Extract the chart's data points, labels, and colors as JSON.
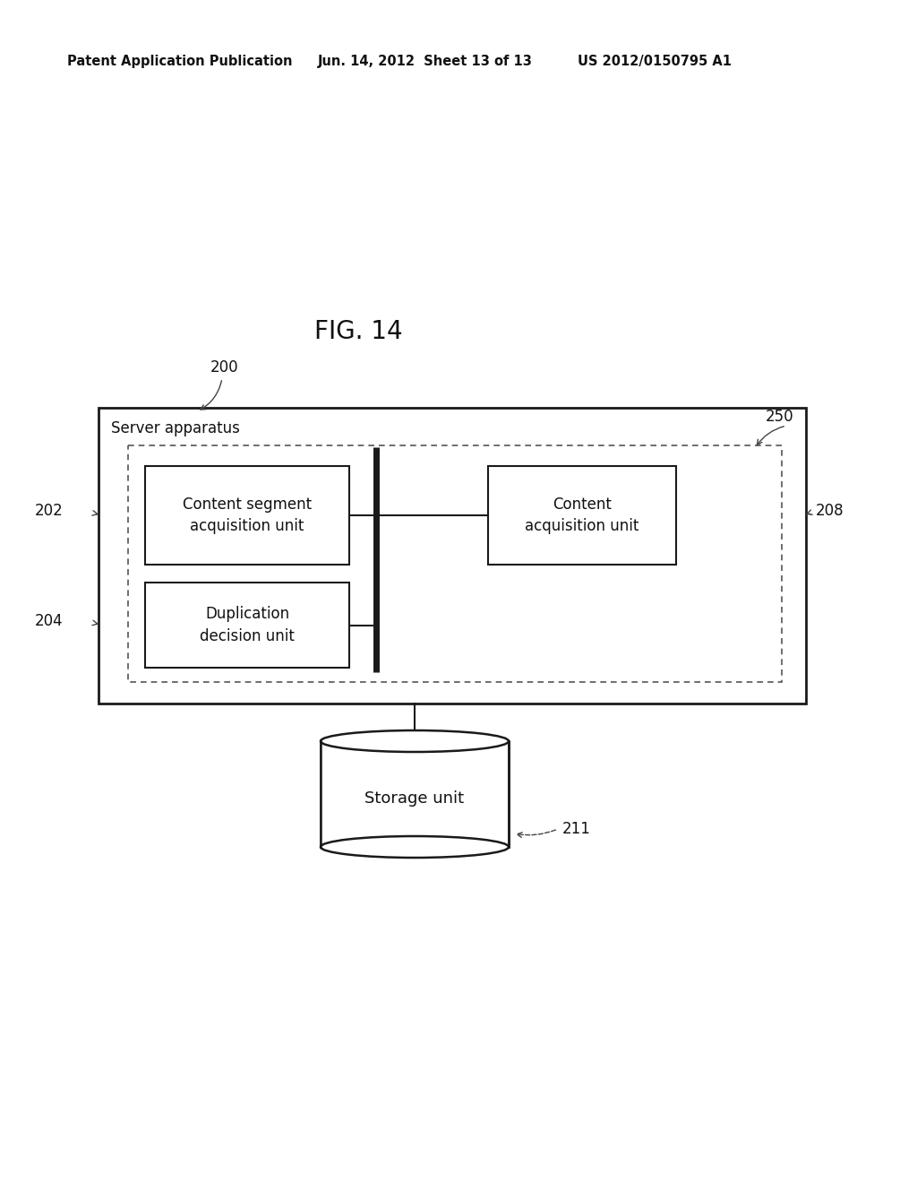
{
  "bg_color": "#ffffff",
  "fig_width": 10.24,
  "fig_height": 13.2,
  "header_left": "Patent Application Publication",
  "header_mid": "Jun. 14, 2012  Sheet 13 of 13",
  "header_right": "US 2012/0150795 A1",
  "fig_label": "FIG. 14",
  "outer_box_label": "Server apparatus",
  "ref_200": "200",
  "ref_250": "250",
  "box1_label": "Content segment\nacquisition unit",
  "ref_202": "202",
  "box2_label": "Content\nacquisition unit",
  "ref_208": "208",
  "box3_label": "Duplication\ndecision unit",
  "ref_204": "204",
  "storage_label": "Storage unit",
  "ref_211": "211"
}
